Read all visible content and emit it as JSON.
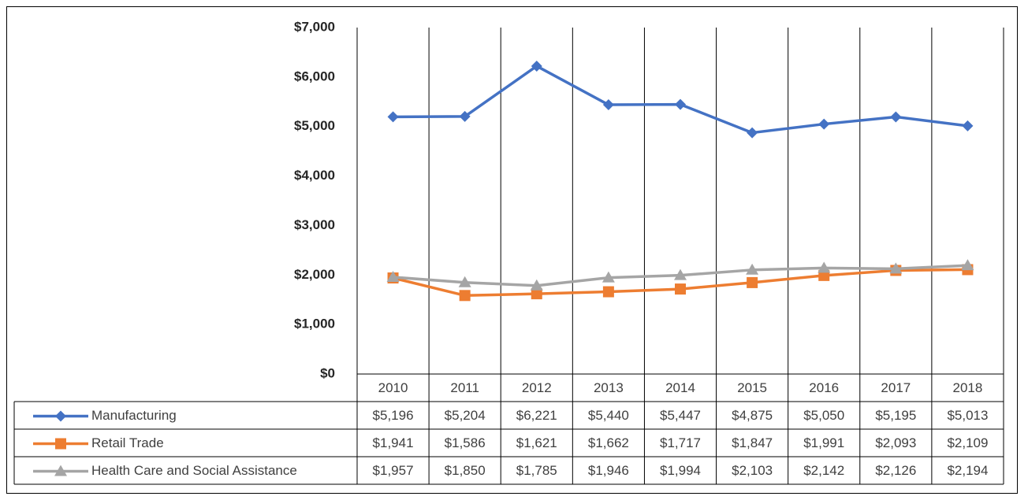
{
  "chart_data": {
    "type": "line",
    "categories": [
      "2010",
      "2011",
      "2012",
      "2013",
      "2014",
      "2015",
      "2016",
      "2017",
      "2018"
    ],
    "series": [
      {
        "name": "Manufacturing",
        "color": "#4472c4",
        "marker": "diamond",
        "values": [
          5196,
          5204,
          6221,
          5440,
          5447,
          4875,
          5050,
          5195,
          5013
        ],
        "value_labels": [
          "$5,196",
          "$5,204",
          "$6,221",
          "$5,440",
          "$5,447",
          "$4,875",
          "$5,050",
          "$5,195",
          "$5,013"
        ]
      },
      {
        "name": "Retail Trade",
        "color": "#ed7d31",
        "marker": "square",
        "values": [
          1941,
          1586,
          1621,
          1662,
          1717,
          1847,
          1991,
          2093,
          2109
        ],
        "value_labels": [
          "$1,941",
          "$1,586",
          "$1,621",
          "$1,662",
          "$1,717",
          "$1,847",
          "$1,991",
          "$2,093",
          "$2,109"
        ]
      },
      {
        "name": "Health Care and Social Assistance",
        "color": "#a5a5a5",
        "marker": "triangle",
        "values": [
          1957,
          1850,
          1785,
          1946,
          1994,
          2103,
          2142,
          2126,
          2194
        ],
        "value_labels": [
          "$1,957",
          "$1,850",
          "$1,785",
          "$1,946",
          "$1,994",
          "$2,103",
          "$2,142",
          "$2,126",
          "$2,194"
        ]
      }
    ],
    "ylim": [
      0,
      7000
    ],
    "yticks": [
      {
        "value": 0,
        "label": "$0"
      },
      {
        "value": 1000,
        "label": "$1,000"
      },
      {
        "value": 2000,
        "label": "$2,000"
      },
      {
        "value": 3000,
        "label": "$3,000"
      },
      {
        "value": 4000,
        "label": "$4,000"
      },
      {
        "value": 5000,
        "label": "$5,000"
      },
      {
        "value": 6000,
        "label": "$6,000"
      },
      {
        "value": 7000,
        "label": "$7,000"
      }
    ],
    "grid": false
  }
}
